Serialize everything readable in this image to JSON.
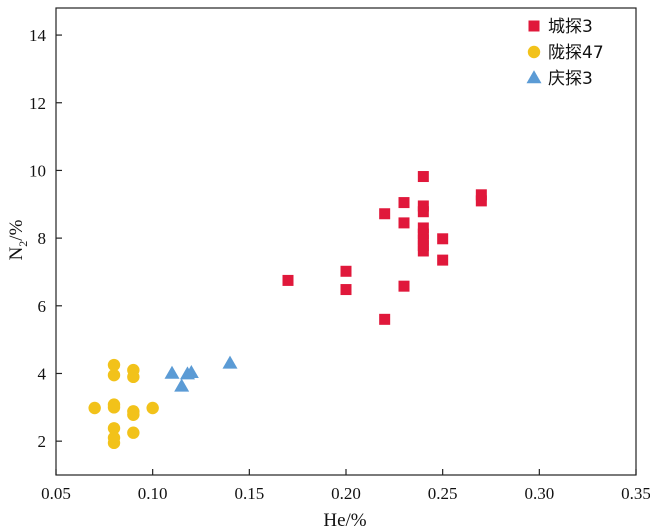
{
  "chart_data": {
    "type": "scatter",
    "xlabel": "He/%",
    "ylabel_main": "N",
    "ylabel_sub": "2",
    "ylabel_rest": "/%",
    "xlim": [
      0.05,
      0.35
    ],
    "ylim": [
      1.0,
      14.8
    ],
    "xticks": [
      0.05,
      0.1,
      0.15,
      0.2,
      0.25,
      0.3,
      0.35
    ],
    "xtick_labels": [
      "0.05",
      "0.10",
      "0.15",
      "0.20",
      "0.25",
      "0.30",
      "0.35"
    ],
    "yticks": [
      2,
      4,
      6,
      8,
      10,
      12,
      14
    ],
    "ytick_labels": [
      "2",
      "4",
      "6",
      "8",
      "10",
      "12",
      "14"
    ],
    "grid": false,
    "legend_position": "top-right",
    "series": [
      {
        "name": "城探3",
        "marker": "square",
        "color": "#e0183b",
        "points": [
          {
            "x": 0.17,
            "y": 6.75
          },
          {
            "x": 0.2,
            "y": 7.02
          },
          {
            "x": 0.2,
            "y": 6.48
          },
          {
            "x": 0.22,
            "y": 8.72
          },
          {
            "x": 0.22,
            "y": 5.6
          },
          {
            "x": 0.23,
            "y": 9.05
          },
          {
            "x": 0.23,
            "y": 8.45
          },
          {
            "x": 0.23,
            "y": 6.58
          },
          {
            "x": 0.24,
            "y": 9.82
          },
          {
            "x": 0.24,
            "y": 8.95
          },
          {
            "x": 0.24,
            "y": 8.78
          },
          {
            "x": 0.24,
            "y": 8.3
          },
          {
            "x": 0.24,
            "y": 8.12
          },
          {
            "x": 0.24,
            "y": 7.95
          },
          {
            "x": 0.24,
            "y": 7.78
          },
          {
            "x": 0.24,
            "y": 7.62
          },
          {
            "x": 0.25,
            "y": 7.98
          },
          {
            "x": 0.25,
            "y": 7.35
          },
          {
            "x": 0.27,
            "y": 9.28
          },
          {
            "x": 0.27,
            "y": 9.1
          }
        ]
      },
      {
        "name": "陇探47",
        "marker": "circle",
        "color": "#f2c21a",
        "points": [
          {
            "x": 0.07,
            "y": 2.98
          },
          {
            "x": 0.08,
            "y": 4.25
          },
          {
            "x": 0.08,
            "y": 3.95
          },
          {
            "x": 0.08,
            "y": 3.08
          },
          {
            "x": 0.08,
            "y": 3.0
          },
          {
            "x": 0.08,
            "y": 2.38
          },
          {
            "x": 0.08,
            "y": 2.1
          },
          {
            "x": 0.08,
            "y": 1.95
          },
          {
            "x": 0.09,
            "y": 4.1
          },
          {
            "x": 0.09,
            "y": 3.9
          },
          {
            "x": 0.09,
            "y": 2.88
          },
          {
            "x": 0.09,
            "y": 2.78
          },
          {
            "x": 0.09,
            "y": 2.25
          },
          {
            "x": 0.1,
            "y": 2.98
          }
        ]
      },
      {
        "name": "庆探3",
        "marker": "triangle",
        "color": "#5b9bd5",
        "points": [
          {
            "x": 0.11,
            "y": 4.0
          },
          {
            "x": 0.115,
            "y": 3.62
          },
          {
            "x": 0.118,
            "y": 3.98
          },
          {
            "x": 0.12,
            "y": 4.02
          },
          {
            "x": 0.14,
            "y": 4.3
          }
        ]
      }
    ]
  }
}
